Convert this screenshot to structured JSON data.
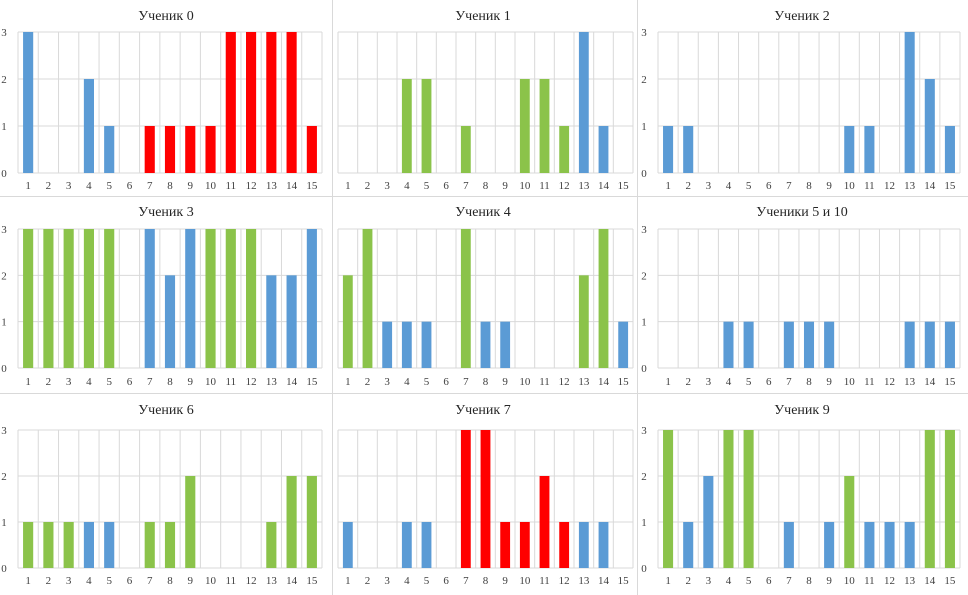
{
  "colors": {
    "blue": "#5b9bd5",
    "green": "#8bc34a",
    "red": "#ff0000",
    "grid": "#d9d9d9"
  },
  "chart_data": [
    {
      "type": "bar",
      "title": "Ученик 0",
      "categories": [
        "1",
        "2",
        "3",
        "4",
        "5",
        "6",
        "7",
        "8",
        "9",
        "10",
        "11",
        "12",
        "13",
        "14",
        "15"
      ],
      "values": [
        3,
        0,
        0,
        2,
        1,
        0,
        1,
        1,
        1,
        1,
        3,
        3,
        3,
        3,
        1
      ],
      "bar_colors": [
        "blue",
        "blue",
        "blue",
        "blue",
        "blue",
        "blue",
        "red",
        "red",
        "red",
        "red",
        "red",
        "red",
        "red",
        "red",
        "red"
      ],
      "ylim": [
        0,
        3
      ],
      "yticks": [
        "0",
        "1",
        "2",
        "3"
      ],
      "show_yticks": true,
      "grid": true
    },
    {
      "type": "bar",
      "title": "Ученик 1",
      "categories": [
        "1",
        "2",
        "3",
        "4",
        "5",
        "6",
        "7",
        "8",
        "9",
        "10",
        "11",
        "12",
        "13",
        "14",
        "15"
      ],
      "values": [
        0,
        0,
        0,
        2,
        2,
        0,
        1,
        0,
        0,
        2,
        2,
        1,
        3,
        1,
        0
      ],
      "bar_colors": [
        "green",
        "green",
        "green",
        "green",
        "green",
        "green",
        "green",
        "green",
        "green",
        "green",
        "green",
        "green",
        "blue",
        "blue",
        "blue"
      ],
      "ylim": [
        0,
        3
      ],
      "yticks": [
        "0",
        "1",
        "2",
        "3"
      ],
      "show_yticks": false,
      "grid": true
    },
    {
      "type": "bar",
      "title": "Ученик 2",
      "categories": [
        "1",
        "2",
        "3",
        "4",
        "5",
        "6",
        "7",
        "8",
        "9",
        "10",
        "11",
        "12",
        "13",
        "14",
        "15"
      ],
      "values": [
        1,
        1,
        0,
        0,
        0,
        0,
        0,
        0,
        0,
        1,
        1,
        0,
        3,
        2,
        1
      ],
      "bar_colors": [
        "blue",
        "blue",
        "blue",
        "blue",
        "blue",
        "blue",
        "blue",
        "blue",
        "blue",
        "blue",
        "blue",
        "blue",
        "blue",
        "blue",
        "blue"
      ],
      "ylim": [
        0,
        3
      ],
      "yticks": [
        "0",
        "1",
        "2",
        "3"
      ],
      "show_yticks": true,
      "grid": true
    },
    {
      "type": "bar",
      "title": "Ученик 3",
      "categories": [
        "1",
        "2",
        "3",
        "4",
        "5",
        "6",
        "7",
        "8",
        "9",
        "10",
        "11",
        "12",
        "13",
        "14",
        "15"
      ],
      "values": [
        3,
        3,
        3,
        3,
        3,
        0,
        3,
        2,
        3,
        3,
        3,
        3,
        2,
        2,
        3
      ],
      "bar_colors": [
        "green",
        "green",
        "green",
        "green",
        "green",
        "green",
        "blue",
        "blue",
        "blue",
        "green",
        "green",
        "green",
        "blue",
        "blue",
        "blue"
      ],
      "ylim": [
        0,
        3
      ],
      "yticks": [
        "0",
        "1",
        "2",
        "3"
      ],
      "show_yticks": true,
      "grid": true
    },
    {
      "type": "bar",
      "title": "Ученик 4",
      "categories": [
        "1",
        "2",
        "3",
        "4",
        "5",
        "6",
        "7",
        "8",
        "9",
        "10",
        "11",
        "12",
        "13",
        "14",
        "15"
      ],
      "values": [
        2,
        3,
        1,
        1,
        1,
        0,
        3,
        1,
        1,
        0,
        0,
        0,
        2,
        3,
        1
      ],
      "bar_colors": [
        "green",
        "green",
        "blue",
        "blue",
        "blue",
        "blue",
        "green",
        "blue",
        "blue",
        "blue",
        "blue",
        "blue",
        "green",
        "green",
        "blue"
      ],
      "ylim": [
        0,
        3
      ],
      "yticks": [
        "0",
        "1",
        "2",
        "3"
      ],
      "show_yticks": false,
      "grid": true
    },
    {
      "type": "bar",
      "title": "Ученики 5 и 10",
      "categories": [
        "1",
        "2",
        "3",
        "4",
        "5",
        "6",
        "7",
        "8",
        "9",
        "10",
        "11",
        "12",
        "13",
        "14",
        "15"
      ],
      "values": [
        0,
        0,
        0,
        1,
        1,
        0,
        1,
        1,
        1,
        0,
        0,
        0,
        1,
        1,
        1
      ],
      "bar_colors": [
        "blue",
        "blue",
        "blue",
        "blue",
        "blue",
        "blue",
        "blue",
        "blue",
        "blue",
        "blue",
        "blue",
        "blue",
        "blue",
        "blue",
        "blue"
      ],
      "ylim": [
        0,
        3
      ],
      "yticks": [
        "0",
        "1",
        "2",
        "3"
      ],
      "show_yticks": true,
      "grid": true
    },
    {
      "type": "bar",
      "title": "Ученик 6",
      "categories": [
        "1",
        "2",
        "3",
        "4",
        "5",
        "6",
        "7",
        "8",
        "9",
        "10",
        "11",
        "12",
        "13",
        "14",
        "15"
      ],
      "values": [
        1,
        1,
        1,
        1,
        1,
        0,
        1,
        1,
        2,
        0,
        0,
        0,
        1,
        2,
        2
      ],
      "bar_colors": [
        "green",
        "green",
        "green",
        "blue",
        "blue",
        "green",
        "green",
        "green",
        "green",
        "green",
        "green",
        "green",
        "green",
        "green",
        "green"
      ],
      "ylim": [
        0,
        3
      ],
      "yticks": [
        "0",
        "1",
        "2",
        "3"
      ],
      "show_yticks": true,
      "grid": true
    },
    {
      "type": "bar",
      "title": "Ученик 7",
      "categories": [
        "1",
        "2",
        "3",
        "4",
        "5",
        "6",
        "7",
        "8",
        "9",
        "10",
        "11",
        "12",
        "13",
        "14",
        "15"
      ],
      "values": [
        1,
        0,
        0,
        1,
        1,
        0,
        3,
        3,
        1,
        1,
        2,
        1,
        1,
        1,
        0
      ],
      "bar_colors": [
        "blue",
        "blue",
        "blue",
        "blue",
        "blue",
        "blue",
        "red",
        "red",
        "red",
        "red",
        "red",
        "red",
        "blue",
        "blue",
        "blue"
      ],
      "ylim": [
        0,
        3
      ],
      "yticks": [
        "0",
        "1",
        "2",
        "3"
      ],
      "show_yticks": false,
      "grid": true
    },
    {
      "type": "bar",
      "title": "Ученик 9",
      "categories": [
        "1",
        "2",
        "3",
        "4",
        "5",
        "6",
        "7",
        "8",
        "9",
        "10",
        "11",
        "12",
        "13",
        "14",
        "15"
      ],
      "values": [
        3,
        1,
        2,
        3,
        3,
        0,
        1,
        0,
        1,
        2,
        1,
        1,
        1,
        3,
        3
      ],
      "bar_colors": [
        "green",
        "blue",
        "blue",
        "green",
        "green",
        "blue",
        "blue",
        "blue",
        "blue",
        "green",
        "blue",
        "blue",
        "blue",
        "green",
        "green"
      ],
      "ylim": [
        0,
        3
      ],
      "yticks": [
        "0",
        "1",
        "2",
        "3"
      ],
      "show_yticks": true,
      "grid": true
    }
  ]
}
